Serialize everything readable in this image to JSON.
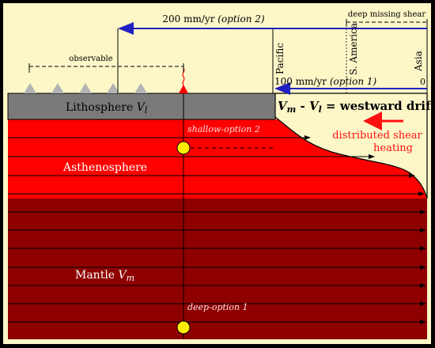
{
  "colors": {
    "background": "#fdf7c8",
    "lithosphere": "#7a7a7a",
    "asthenosphere": "#ff0000",
    "mantle": "#8e0000",
    "velocity_arrow": "#2020c0",
    "shear_label": "#ff1010",
    "marker": "#ffee00",
    "mountain": "#b4b4b4",
    "ridge": "#ff0000"
  },
  "labels": {
    "option2_velocity": "200 mm/yr",
    "option2_tag": "(option 2)",
    "option1_velocity": "100 mm/yr",
    "option1_tag": "(option 1)",
    "zero": "0",
    "deep_missing_shear": "deep missing shear",
    "observable": "observable",
    "pacific": "Pacific",
    "s_america": "S. America",
    "asia": "Asia",
    "lithosphere": "Lithosphere",
    "lithosphere_var": "V",
    "lithosphere_sub": "l",
    "drift_vm": "V",
    "drift_vm_sub": "m",
    "drift_minus": " - ",
    "drift_vl": "V",
    "drift_vl_sub": "l",
    "drift_rest": " = westward drift",
    "distributed_shear_1": "distributed shear",
    "distributed_shear_2": "heating",
    "shallow_option": "shallow-option 2",
    "asthenosphere": "Asthenosphere",
    "mantle": "Mantle",
    "mantle_var": "V",
    "mantle_sub": "m",
    "deep_option": "deep-option 1"
  }
}
